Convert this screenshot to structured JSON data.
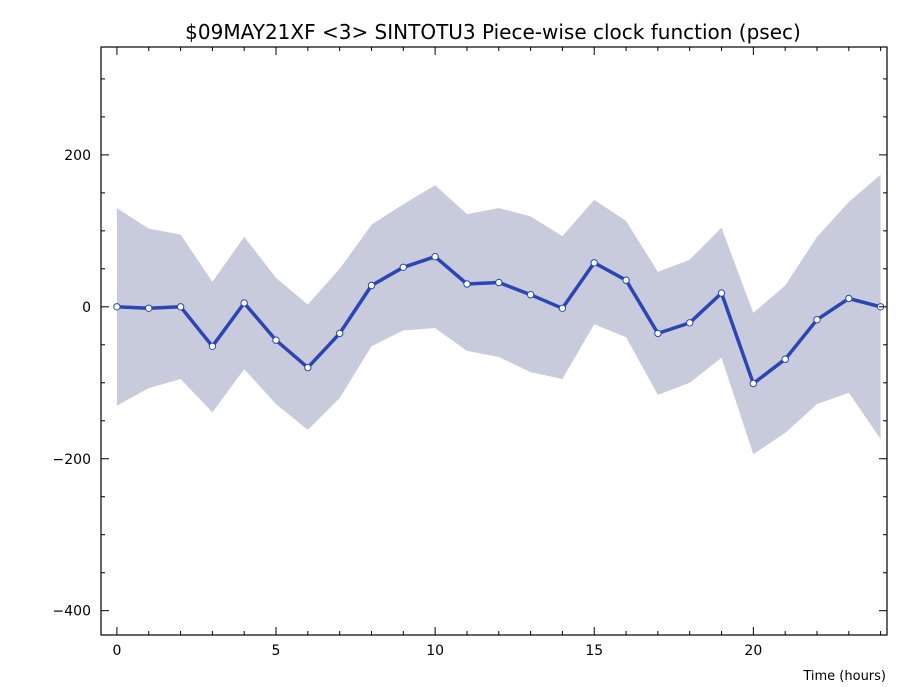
{
  "chart_data": {
    "type": "line",
    "title": "$09MAY21XF <3>  SINTOTU3  Piece-wise clock function (psec)",
    "xlabel": "Time (hours)",
    "ylabel": "",
    "xlim": [
      -0.5,
      24.2
    ],
    "ylim": [
      -432,
      342
    ],
    "x_ticks": [
      0,
      5,
      10,
      15,
      20
    ],
    "x_tick_labels": [
      "0",
      "5",
      "10",
      "15",
      "20"
    ],
    "y_ticks": [
      200,
      0,
      -200,
      -400
    ],
    "y_tick_labels": [
      "200",
      "0",
      "−200",
      "−400"
    ],
    "grid": false,
    "series": [
      {
        "x": [
          0,
          1,
          2,
          3,
          4,
          5,
          6,
          7,
          8,
          9,
          10,
          11,
          12,
          13,
          14,
          15,
          16,
          17,
          18,
          19,
          20,
          21,
          22,
          23,
          24
        ],
        "values": [
          0,
          -2,
          0,
          -52,
          5,
          -44,
          -80,
          -35,
          28,
          52,
          66,
          30,
          32,
          16,
          -2,
          58,
          35,
          -35,
          -21,
          18,
          -101,
          -69,
          -17,
          11,
          0
        ],
        "upper": [
          130,
          103,
          95,
          33,
          92,
          38,
          3,
          50,
          108,
          135,
          160,
          122,
          130,
          119,
          93,
          141,
          113,
          46,
          62,
          104,
          -8,
          28,
          92,
          138,
          174
        ],
        "lower": [
          -130,
          -107,
          -95,
          -139,
          -82,
          -128,
          -162,
          -120,
          -52,
          -31,
          -28,
          -58,
          -66,
          -86,
          -95,
          -23,
          -40,
          -116,
          -100,
          -67,
          -194,
          -166,
          -128,
          -113,
          -174
        ]
      }
    ],
    "colors": {
      "line": "#2b45b5",
      "band": "#c7cbdc",
      "marker_fill": "#ffffff"
    }
  }
}
